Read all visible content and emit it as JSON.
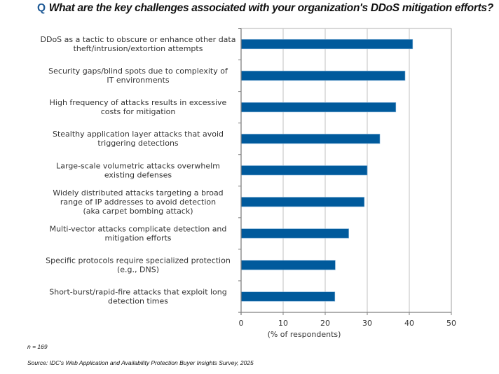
{
  "header": {
    "q_marker": "Q",
    "question": "What are the key challenges associated with your organization's DDoS mitigation efforts?"
  },
  "footer": {
    "n": "n = 169",
    "source": "Source: IDC's Web Application and Availability Protection Buyer Insights Survey, 2025"
  },
  "colors": {
    "bar": "#005a9c",
    "q_marker": "#1f5a96",
    "grid": "#d0d0d0",
    "axis": "#808080"
  },
  "chart_data": {
    "type": "bar",
    "orientation": "horizontal",
    "title": "What are the key challenges associated with your organization's DDoS mitigation efforts?",
    "xlabel": "(% of respondents)",
    "ylabel": "",
    "xlim": [
      0,
      50
    ],
    "xticks": [
      0,
      10,
      20,
      30,
      40,
      50
    ],
    "grid": true,
    "categories": [
      [
        "DDoS as a tactic to obscure or enhance other data",
        "theft/intrusion/extortion attempts"
      ],
      [
        "Security gaps/blind spots due to complexity of",
        "IT environments"
      ],
      [
        "High frequency of attacks results in excessive",
        "costs for mitigation"
      ],
      [
        "Stealthy application layer attacks that avoid",
        "triggering detections"
      ],
      [
        "Large-scale volumetric attacks overwhelm",
        "existing defenses"
      ],
      [
        "Widely distributed attacks targeting a broad",
        "range of IP addresses to avoid detection",
        "(aka carpet bombing attack)"
      ],
      [
        "Multi-vector attacks complicate detection and",
        "mitigation efforts"
      ],
      [
        "Specific protocols require specialized protection",
        "(e.g., DNS)"
      ],
      [
        "Short-burst/rapid-fire attacks that exploit long",
        "detection times"
      ]
    ],
    "values": [
      40.8,
      39.0,
      36.8,
      33.0,
      30.0,
      29.3,
      25.6,
      22.4,
      22.3
    ]
  }
}
